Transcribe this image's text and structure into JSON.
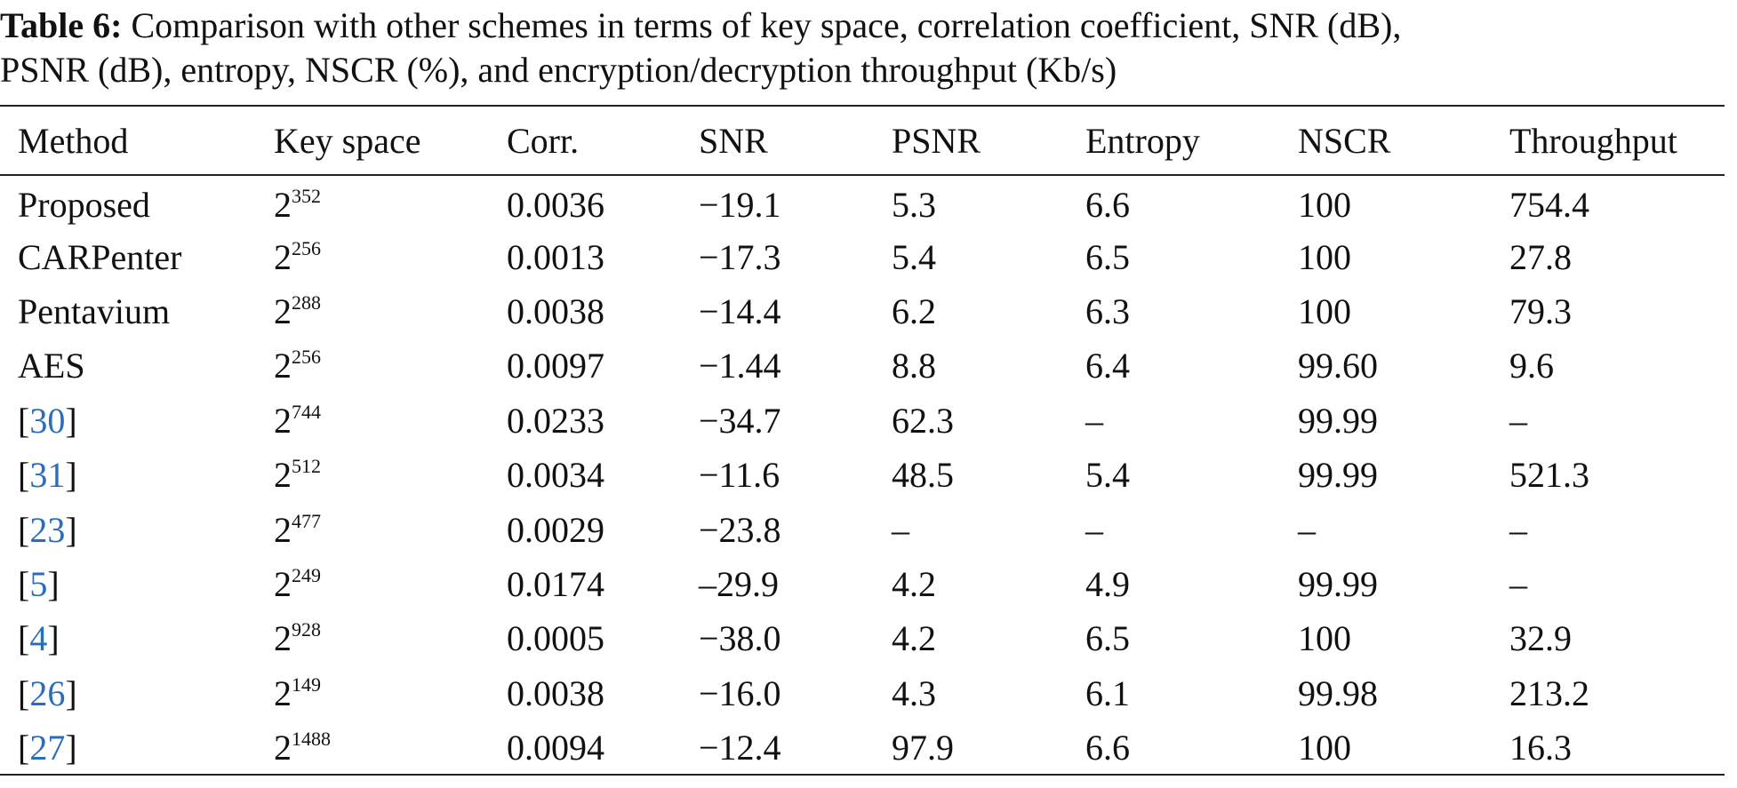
{
  "caption": {
    "label": "Table 6:",
    "line1": " Comparison with other schemes in terms of key space, correlation coefficient, SNR (dB),",
    "line2": "PSNR (dB), entropy, NSCR (%), and encryption/decryption throughput (Kb/s)"
  },
  "table": {
    "headers": [
      "Method",
      "Key space",
      "Corr.",
      "SNR",
      "PSNR",
      "Entropy",
      "NSCR",
      "Throughput"
    ],
    "rows": [
      {
        "method": "Proposed",
        "is_ref": false,
        "key_base": "2",
        "key_exp": "352",
        "corr": "0.0036",
        "snr": "−19.1",
        "psnr": "5.3",
        "entropy": "6.6",
        "nscr": "100",
        "throughput": "754.4"
      },
      {
        "method": "CARPenter",
        "is_ref": false,
        "key_base": "2",
        "key_exp": "256",
        "corr": "0.0013",
        "snr": "−17.3",
        "psnr": "5.4",
        "entropy": "6.5",
        "nscr": "100",
        "throughput": "27.8"
      },
      {
        "method": "Pentavium",
        "is_ref": false,
        "key_base": "2",
        "key_exp": "288",
        "corr": "0.0038",
        "snr": "−14.4",
        "psnr": "6.2",
        "entropy": "6.3",
        "nscr": "100",
        "throughput": "79.3"
      },
      {
        "method": "AES",
        "is_ref": false,
        "key_base": "2",
        "key_exp": "256",
        "corr": "0.0097",
        "snr": "−1.44",
        "psnr": "8.8",
        "entropy": "6.4",
        "nscr": "99.60",
        "throughput": "9.6"
      },
      {
        "method": "30",
        "is_ref": true,
        "key_base": "2",
        "key_exp": "744",
        "corr": "0.0233",
        "snr": "−34.7",
        "psnr": "62.3",
        "entropy": "–",
        "nscr": "99.99",
        "throughput": "–"
      },
      {
        "method": "31",
        "is_ref": true,
        "key_base": "2",
        "key_exp": "512",
        "corr": "0.0034",
        "snr": "−11.6",
        "psnr": "48.5",
        "entropy": "5.4",
        "nscr": "99.99",
        "throughput": "521.3"
      },
      {
        "method": "23",
        "is_ref": true,
        "key_base": "2",
        "key_exp": "477",
        "corr": "0.0029",
        "snr": "−23.8",
        "psnr": "–",
        "entropy": "–",
        "nscr": "–",
        "throughput": "–"
      },
      {
        "method": "5",
        "is_ref": true,
        "key_base": "2",
        "key_exp": "249",
        "corr": "0.0174",
        "snr": "–29.9",
        "psnr": "4.2",
        "entropy": "4.9",
        "nscr": "99.99",
        "throughput": "–"
      },
      {
        "method": "4",
        "is_ref": true,
        "key_base": "2",
        "key_exp": "928",
        "corr": "0.0005",
        "snr": "−38.0",
        "psnr": "4.2",
        "entropy": "6.5",
        "nscr": "100",
        "throughput": "32.9"
      },
      {
        "method": "26",
        "is_ref": true,
        "key_base": "2",
        "key_exp": "149",
        "corr": "0.0038",
        "snr": "−16.0",
        "psnr": "4.3",
        "entropy": "6.1",
        "nscr": "99.98",
        "throughput": "213.2"
      },
      {
        "method": "27",
        "is_ref": true,
        "key_base": "2",
        "key_exp": "1488",
        "corr": "0.0094",
        "snr": "−12.4",
        "psnr": "97.9",
        "entropy": "6.6",
        "nscr": "100",
        "throughput": "16.3"
      }
    ]
  },
  "colors": {
    "text": "#111111",
    "ref_link": "#2a6ebb",
    "rule": "#222222"
  }
}
